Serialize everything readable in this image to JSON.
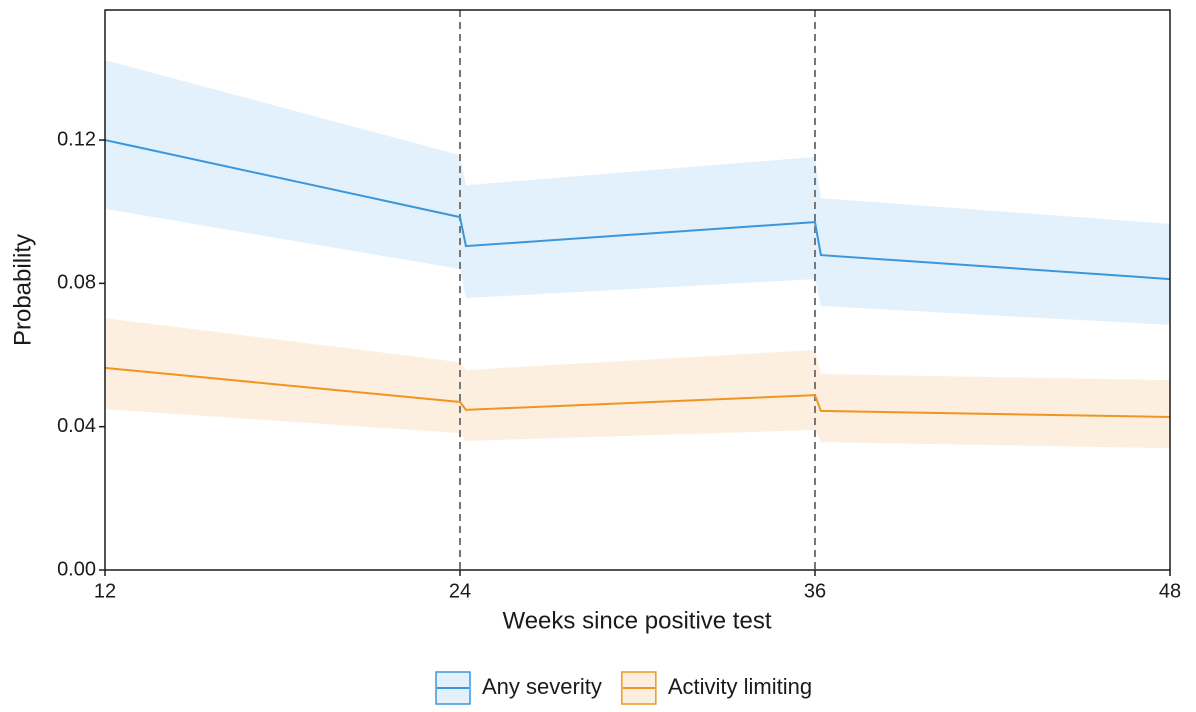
{
  "chart_data": {
    "type": "line",
    "x_label": "Weeks since positive test",
    "y_label": "Probability",
    "x": [
      12,
      24,
      24.2,
      36,
      36.2,
      48
    ],
    "series": [
      {
        "name": "Any severity",
        "color": "#3a97dc",
        "band_color": "#e3f1fc",
        "values": [
          0.12,
          0.0985,
          0.0904,
          0.0971,
          0.0879,
          0.0812
        ],
        "upper": [
          0.1423,
          0.1158,
          0.1074,
          0.1153,
          0.1038,
          0.0966
        ],
        "lower": [
          0.1008,
          0.084,
          0.0759,
          0.0812,
          0.0737,
          0.0684
        ]
      },
      {
        "name": "Activity limiting",
        "color": "#f0961e",
        "band_color": "#fcefe0",
        "values": [
          0.0564,
          0.0469,
          0.0447,
          0.0488,
          0.0444,
          0.0427
        ],
        "upper": [
          0.0703,
          0.058,
          0.0558,
          0.0614,
          0.0547,
          0.053
        ],
        "lower": [
          0.0449,
          0.0382,
          0.036,
          0.0391,
          0.0357,
          0.034
        ]
      }
    ],
    "vlines": [
      24,
      36
    ],
    "xlim": [
      12,
      48
    ],
    "xticks": [
      12,
      24,
      36,
      48
    ],
    "ylim": [
      0,
      0.1563
    ],
    "yticks": [
      {
        "value": 0,
        "label": "0.00"
      },
      0.04,
      0.08,
      0.12
    ],
    "grid": false,
    "legend_position": "bottom"
  }
}
